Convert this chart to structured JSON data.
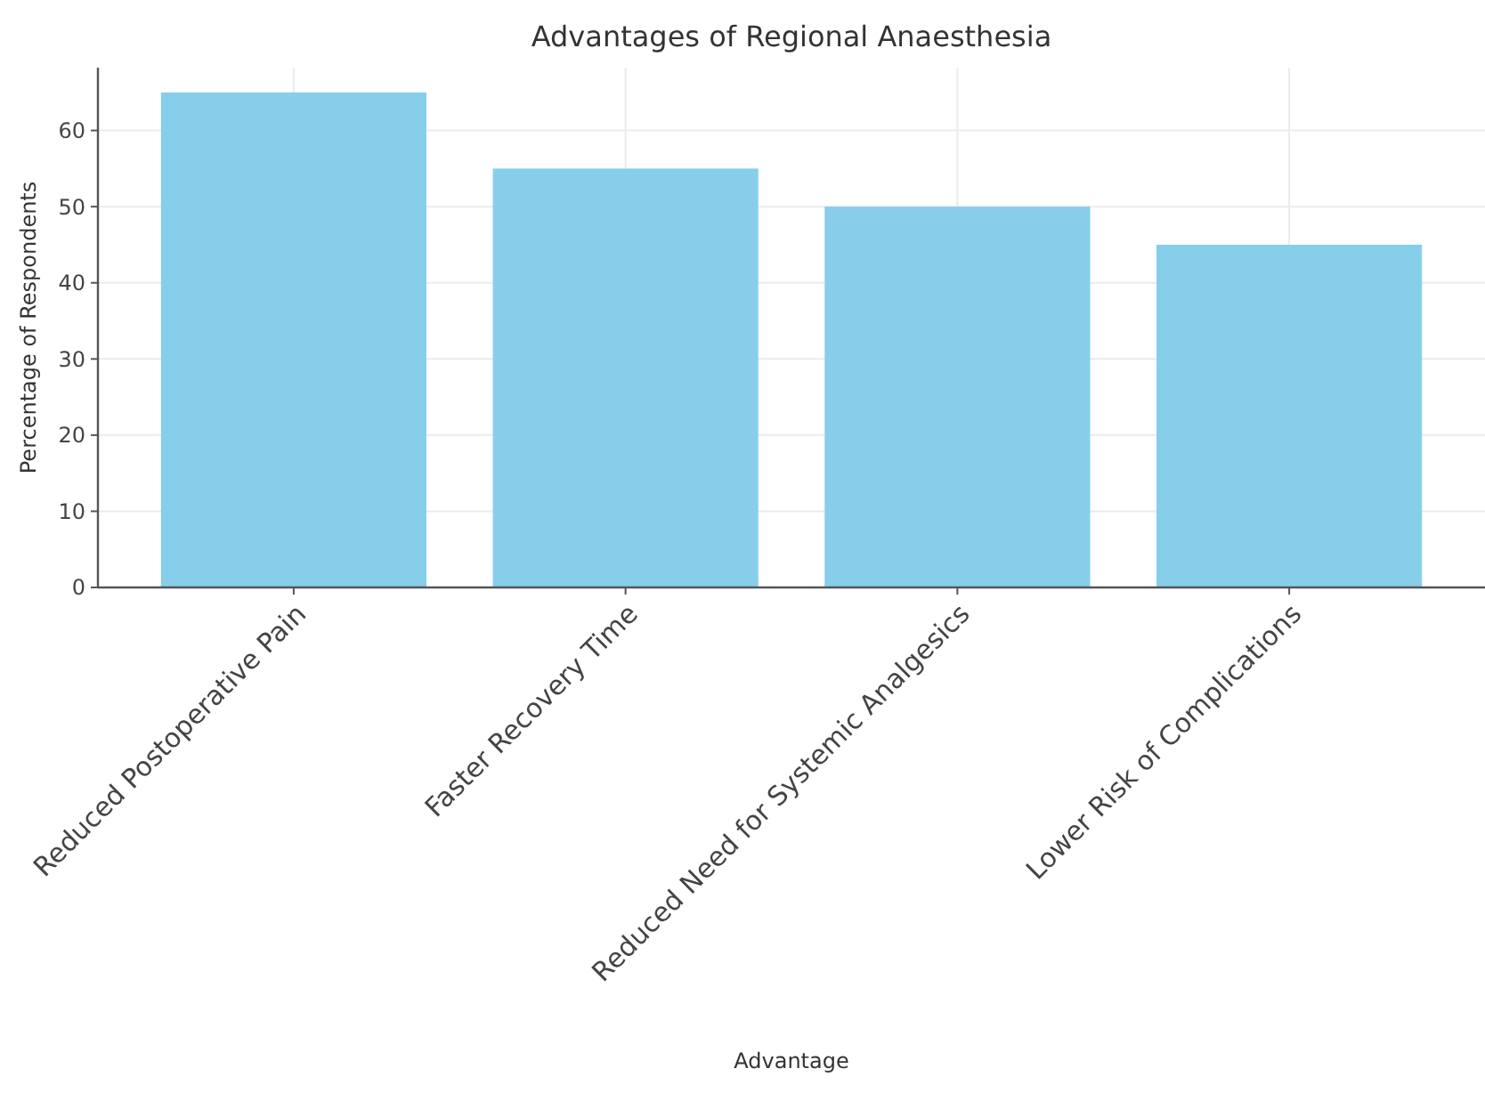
{
  "chart_data": {
    "type": "bar",
    "title": "Advantages of Regional Anaesthesia",
    "xlabel": "Advantage",
    "ylabel": "Percentage of Respondents",
    "categories": [
      "Reduced Postoperative Pain",
      "Faster Recovery Time",
      "Reduced Need for Systemic Analgesics",
      "Lower Risk of Complications"
    ],
    "values": [
      65,
      55,
      50,
      45
    ],
    "color": "#87ceeb",
    "ylim": [
      0,
      68.25
    ],
    "yticks": [
      0,
      10,
      20,
      30,
      40,
      50,
      60
    ],
    "grid": true
  }
}
